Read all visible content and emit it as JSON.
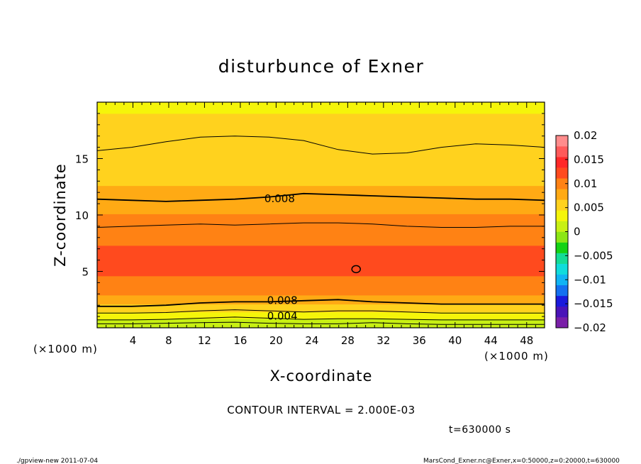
{
  "footer": {
    "left": "./gpview-new   2011-07-04",
    "right": "MarsCond_Exner.nc@Exner,x=0:50000,z=0:20000,t=630000"
  },
  "contour_interval_text": "CONTOUR INTERVAL = 2.000E-03",
  "time_text": "t=630000 s",
  "chart_data": {
    "type": "heatmap",
    "title": "disturbunce of Exner",
    "xlabel": "X-coordinate",
    "ylabel": "Z-coordinate",
    "x_unit_label": "(×1000 m)",
    "z_unit_label": "(×1000 m)",
    "xlim": [
      0,
      50
    ],
    "ylim": [
      0,
      20
    ],
    "x_ticks": [
      4,
      8,
      12,
      16,
      20,
      24,
      28,
      32,
      36,
      40,
      44,
      48
    ],
    "y_ticks": [
      5,
      10,
      15
    ],
    "colorbar": {
      "ticks": [
        "0.02",
        "0.015",
        "0.01",
        "0.005",
        "0",
        "−0.005",
        "−0.01",
        "−0.015",
        "−0.02"
      ],
      "range": [
        -0.02,
        0.02
      ],
      "colors": [
        "#7a1fa8",
        "#4a14b8",
        "#1a1adc",
        "#1470f0",
        "#10b4f4",
        "#10dcdc",
        "#14dc96",
        "#14d214",
        "#8ce614",
        "#c8f014",
        "#f5f50a",
        "#ffd21e",
        "#ffaa14",
        "#ff8214",
        "#ff4a1e",
        "#ff2828",
        "#ff5a5a",
        "#ff8c8c"
      ]
    },
    "contour_interval": 0.002,
    "field_bands": [
      {
        "z": 0.0,
        "value": 0.0005
      },
      {
        "z": 0.3,
        "value": 0.0015
      },
      {
        "z": 0.8,
        "value": 0.0035
      },
      {
        "z": 1.4,
        "value": 0.0055
      },
      {
        "z": 2.1,
        "value": 0.0075
      },
      {
        "z": 2.9,
        "value": 0.0095
      },
      {
        "z": 3.6,
        "value": 0.0105
      },
      {
        "z": 4.6,
        "value": 0.0115
      },
      {
        "z": 7.3,
        "value": 0.0105
      },
      {
        "z": 8.9,
        "value": 0.0095
      },
      {
        "z": 10.1,
        "value": 0.0085
      },
      {
        "z": 11.3,
        "value": 0.0075
      },
      {
        "z": 12.6,
        "value": 0.0065
      },
      {
        "z": 15.0,
        "value": 0.0055
      },
      {
        "z": 17.5,
        "value": 0.0045
      },
      {
        "z": 19.0,
        "value": 0.0035
      }
    ],
    "contour_lines": [
      {
        "value": 0.002,
        "z": [
          0.35,
          0.35,
          0.4,
          0.45,
          0.5,
          0.4,
          0.35,
          0.35,
          0.45,
          0.35,
          0.3,
          0.3,
          0.3,
          0.3
        ]
      },
      {
        "value": 0.004,
        "z": [
          0.7,
          0.7,
          0.75,
          0.85,
          0.95,
          0.85,
          0.75,
          0.8,
          0.8,
          0.75,
          0.7,
          0.7,
          0.7,
          0.7
        ]
      },
      {
        "value": 0.006,
        "z": [
          1.3,
          1.3,
          1.35,
          1.5,
          1.6,
          1.5,
          1.4,
          1.5,
          1.5,
          1.4,
          1.3,
          1.3,
          1.3,
          1.3
        ]
      },
      {
        "value": 0.008,
        "z": [
          1.9,
          1.9,
          2.0,
          2.2,
          2.3,
          2.3,
          2.4,
          2.5,
          2.3,
          2.2,
          2.1,
          2.1,
          2.1,
          2.1
        ]
      },
      {
        "value": 0.008,
        "z": [
          11.4,
          11.3,
          11.2,
          11.3,
          11.4,
          11.6,
          11.9,
          11.8,
          11.7,
          11.6,
          11.5,
          11.4,
          11.4,
          11.3
        ]
      },
      {
        "value": 0.006,
        "z": [
          15.7,
          16.0,
          16.5,
          16.9,
          17.0,
          16.9,
          16.6,
          15.8,
          15.4,
          15.5,
          16.0,
          16.3,
          16.2,
          16.0
        ]
      },
      {
        "value": 0.01,
        "z": [
          8.9,
          9.0,
          9.1,
          9.2,
          9.1,
          9.2,
          9.3,
          9.3,
          9.2,
          9.0,
          8.9,
          8.9,
          9.0,
          9.0
        ]
      }
    ],
    "contour_labels": [
      {
        "text": "0.008",
        "x": 20,
        "z": 11.5
      },
      {
        "text": "0.008",
        "x": 20.3,
        "z": 2.5
      },
      {
        "text": "0.004",
        "x": 20.3,
        "z": 1.1
      },
      {
        "text": "0",
        "x": 28.9,
        "z": 5.2
      }
    ]
  }
}
